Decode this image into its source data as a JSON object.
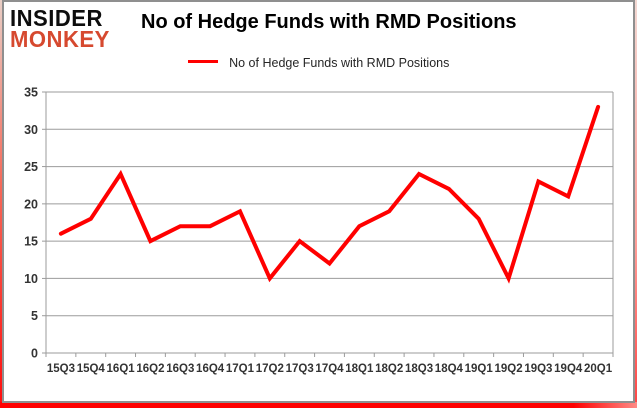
{
  "logo": {
    "line1": "INSIDER",
    "line2": "MONKEY",
    "line1_color": "#0d0d0d",
    "line2_color": "#d6492f"
  },
  "header": {
    "title": "No of Hedge Funds with RMD Positions"
  },
  "legend": {
    "label": "No of Hedge Funds with RMD Positions",
    "line_color": "#ff0000"
  },
  "chart_data": {
    "type": "line",
    "title": "No of Hedge Funds with RMD Positions",
    "categories": [
      "15Q3",
      "15Q4",
      "16Q1",
      "16Q2",
      "16Q3",
      "16Q4",
      "17Q1",
      "17Q2",
      "17Q3",
      "17Q4",
      "18Q1",
      "18Q2",
      "18Q3",
      "18Q4",
      "19Q1",
      "19Q2",
      "19Q3",
      "19Q4",
      "20Q1"
    ],
    "series": [
      {
        "name": "No of Hedge Funds with RMD Positions",
        "color": "#ff0000",
        "values": [
          16,
          18,
          24,
          15,
          17,
          17,
          19,
          10,
          15,
          12,
          17,
          19,
          24,
          22,
          18,
          10,
          23,
          21,
          33
        ]
      }
    ],
    "xlabel": "",
    "ylabel": "",
    "ylim": [
      0,
      35
    ],
    "yticks": [
      0,
      5,
      10,
      15,
      20,
      25,
      30,
      35
    ],
    "grid": true,
    "gridline_color": "#9b9b9b",
    "axis_color": "#9b9b9b",
    "tick_label_color": "#333333",
    "legend_position": "top"
  }
}
